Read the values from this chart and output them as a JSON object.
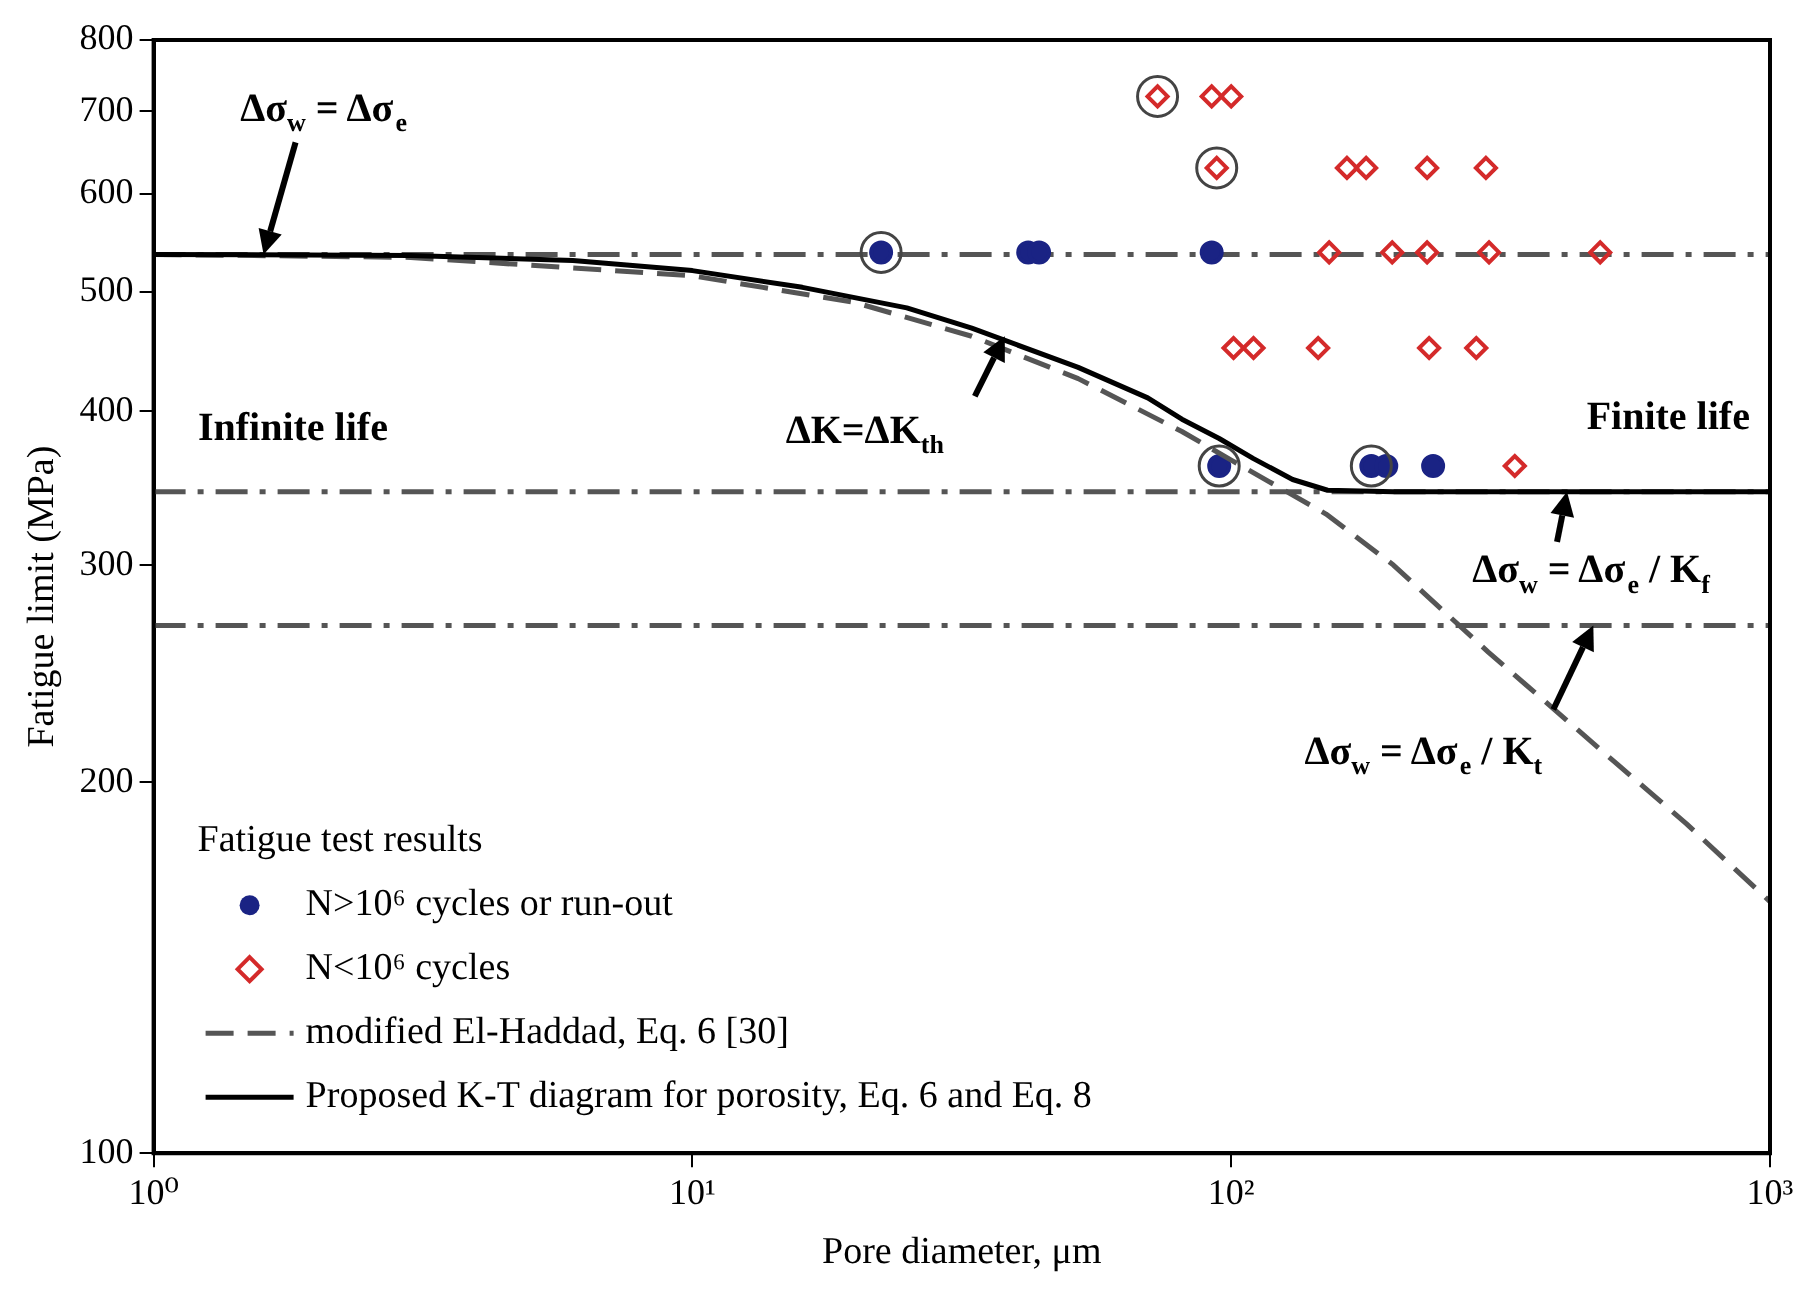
{
  "chart_data": {
    "type": "scatter",
    "xlabel": "Pore diameter, μm",
    "ylabel": "Fatigue limit (MPa)",
    "log": "xy",
    "xlim": [
      1,
      1000
    ],
    "ylim": [
      100,
      800
    ],
    "xticks": [
      {
        "value": 1,
        "label": "10⁰"
      },
      {
        "value": 10,
        "label": "10¹"
      },
      {
        "value": 100,
        "label": "10²"
      },
      {
        "value": 1000,
        "label": "10³"
      }
    ],
    "yticks": [
      100,
      200,
      300,
      400,
      500,
      600,
      700,
      800
    ],
    "grid": false,
    "legend": "bottom left",
    "legend_title": "Fatigue test results",
    "series": [
      {
        "name": "N>10⁶ cycles or run-out",
        "marker": "circle",
        "color": "#1a2384",
        "x": [
          22.4,
          42,
          44,
          92,
          95,
          182,
          194,
          237
        ],
        "values": [
          538,
          538,
          538,
          538,
          361,
          361,
          361,
          361
        ]
      },
      {
        "name": "N<10⁶ cycles",
        "marker": "diamond",
        "color": "#d42a2a",
        "x": [
          73,
          92,
          100,
          94,
          164,
          178,
          231,
          297,
          152,
          199,
          231,
          301,
          484,
          101,
          110,
          145,
          233,
          285,
          336
        ],
        "values": [
          720,
          720,
          720,
          630,
          630,
          630,
          630,
          630,
          538,
          538,
          538,
          538,
          538,
          450,
          450,
          450,
          450,
          450,
          361
        ]
      },
      {
        "name": "modified El-Haddad, Eq. 6 [30]",
        "type": "line",
        "marker": "none",
        "line_style": "dashed",
        "color": "#555555",
        "x": [
          1,
          3,
          10,
          20,
          33,
          52,
          81,
          100,
          150,
          200,
          300,
          500,
          700,
          1000
        ],
        "values": [
          536,
          533,
          515,
          490,
          460,
          425,
          385,
          365,
          330,
          300,
          255,
          210,
          185,
          160
        ]
      },
      {
        "name": "Proposed K-T diagram for porosity, Eq. 6 and Eq. 8",
        "type": "line",
        "marker": "none",
        "line_style": "solid",
        "color": "#000000",
        "x": [
          1,
          3,
          6,
          10,
          16,
          25,
          33,
          52,
          70,
          81,
          95,
          110,
          130,
          151,
          200,
          1000
        ],
        "values": [
          536,
          535,
          530,
          520,
          504,
          485,
          467,
          434,
          410,
          394,
          380,
          366,
          352,
          345,
          344,
          344
        ]
      },
      {
        "marker": "circle",
        "color": "#444444",
        "x": [
          22.4,
          73,
          94,
          95,
          182
        ],
        "values": [
          538,
          720,
          630,
          361,
          361
        ]
      }
    ],
    "ref_lines": [
      {
        "axis": "y",
        "value": 536,
        "color": "#555555",
        "line_style": "dashed"
      },
      {
        "axis": "y",
        "value": 344,
        "color": "#555555",
        "line_style": "dashed"
      },
      {
        "axis": "y",
        "value": 268,
        "color": "#555555",
        "line_style": "dashed"
      }
    ],
    "annotations": [
      {
        "text": "Δσ$_{w}$ = Δσ$_{e}$",
        "x": 1.6,
        "y": 536
      },
      {
        "text": "ΔK=ΔK$_{th}$",
        "x": 38,
        "y": 460
      },
      {
        "text": "Δσ$_{w}$ = Δσ$_{e}$ / K$_{f}$",
        "x": 420,
        "y": 344
      },
      {
        "text": "Δσ$_{w}$ = Δσ$_{e}$ / K$_{t}$",
        "x": 470,
        "y": 268
      },
      "Infinite life",
      "Finite life"
    ]
  }
}
